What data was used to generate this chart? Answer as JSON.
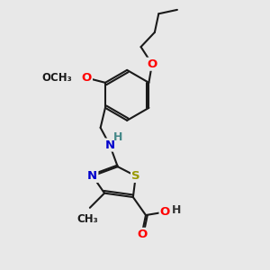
{
  "bg_color": "#e8e8e8",
  "bond_color": "#1a1a1a",
  "bond_width": 1.5,
  "dbo": 0.055,
  "atom_colors": {
    "O": "#ff0000",
    "N": "#0000cc",
    "S": "#999900",
    "H": "#555555",
    "C": "#1a1a1a"
  },
  "fs": 9.5,
  "fss": 8.5,
  "fig_w": 3.0,
  "fig_h": 3.0,
  "dpi": 100
}
